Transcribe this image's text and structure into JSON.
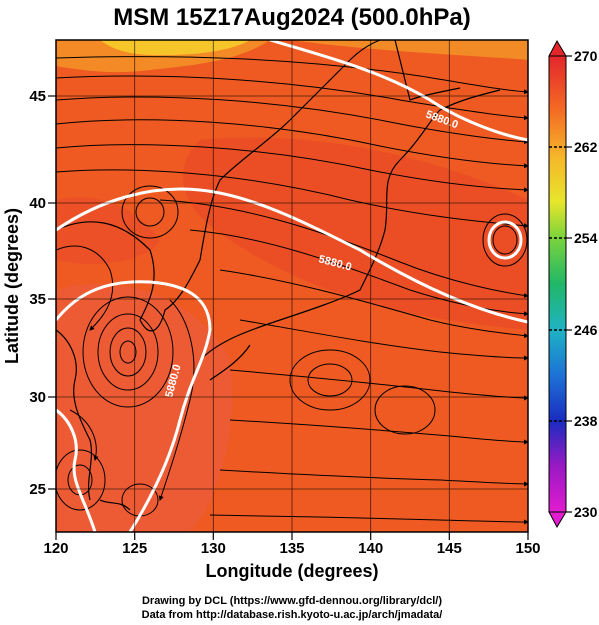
{
  "title": "MSM 15Z17Aug2024 (500.0hPa)",
  "xlabel": "Longitude (degrees)",
  "ylabel": "Latitude  (degrees)",
  "x_ticks": [
    {
      "value": 120,
      "label": "120"
    },
    {
      "value": 125,
      "label": "125"
    },
    {
      "value": 130,
      "label": "130"
    },
    {
      "value": 135,
      "label": "135"
    },
    {
      "value": 140,
      "label": "140"
    },
    {
      "value": 145,
      "label": "145"
    },
    {
      "value": 150,
      "label": "150"
    }
  ],
  "y_ticks": [
    {
      "value": 25,
      "label": "25"
    },
    {
      "value": 30,
      "label": "30"
    },
    {
      "value": 35,
      "label": "35"
    },
    {
      "value": 40,
      "label": "40"
    },
    {
      "value": 45,
      "label": "45"
    }
  ],
  "xlim": [
    120,
    150
  ],
  "ylim": [
    22.4,
    47.6
  ],
  "colorbar": {
    "min": 230,
    "max": 270,
    "ticks": [
      {
        "value": 270,
        "label": "270"
      },
      {
        "value": 262,
        "label": "262"
      },
      {
        "value": 254,
        "label": "254"
      },
      {
        "value": 246,
        "label": "246"
      },
      {
        "value": 238,
        "label": "238"
      },
      {
        "value": 230,
        "label": "230"
      }
    ]
  },
  "contours": [
    {
      "label": "5880.0",
      "label_lon": 146.5,
      "label_lat": 44.2
    },
    {
      "label": "5880.0",
      "label_lon": 138.0,
      "label_lat": 36.8
    },
    {
      "label": "5880.0",
      "label_lon": 127.5,
      "label_lat": 30.4
    }
  ],
  "credits": [
    "Drawing by DCL (https://www.gfd-dennou.org/library/dcl/)",
    "Data from http://database.rish.kyoto-u.ac.jp/arch/jmadata/"
  ]
}
